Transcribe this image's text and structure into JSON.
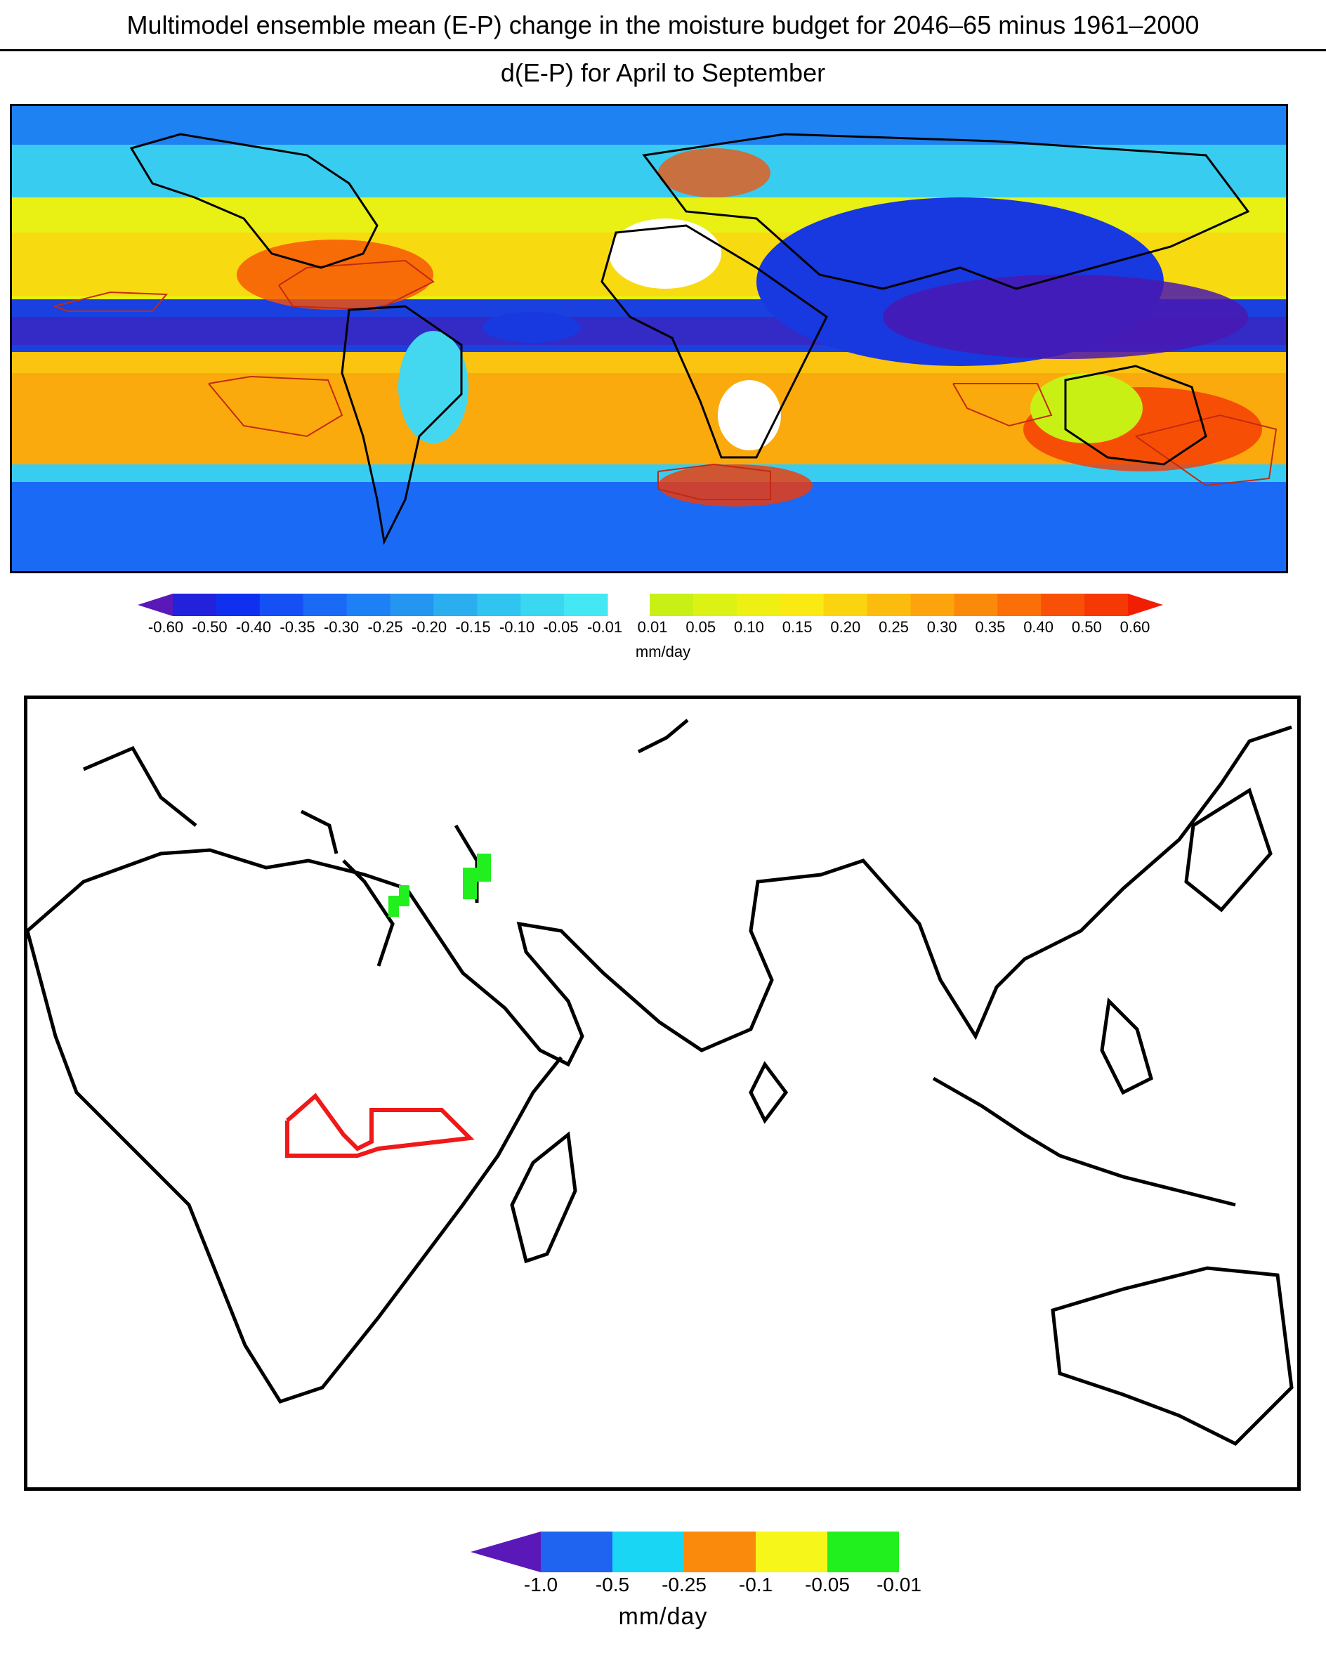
{
  "header": {
    "title": "Multimodel ensemble mean (E-P) change in the moisture budget for 2046–65 minus 1961–2000",
    "subtitle": "d(E-P) for April to September"
  },
  "top_map": {
    "colorbar": {
      "negative_colors": [
        "#5a18b8",
        "#2222dd",
        "#1030f0",
        "#1550f5",
        "#1a6af5",
        "#1e80f5",
        "#2496f2",
        "#2aaef0",
        "#30c4f0",
        "#3ad8f0",
        "#44e8f4"
      ],
      "positive_colors": [
        "#c8f014",
        "#dcf214",
        "#eef014",
        "#faea12",
        "#fbd410",
        "#fcbc0e",
        "#fda40c",
        "#fc8a0a",
        "#fb6e08",
        "#f85006",
        "#f53804",
        "#f21e02"
      ],
      "tick_labels": [
        "-0.60",
        "-0.50",
        "-0.40",
        "-0.35",
        "-0.30",
        "-0.25",
        "-0.20",
        "-0.15",
        "-0.10",
        "-0.05",
        "-0.01",
        "0.01",
        "0.05",
        "0.10",
        "0.15",
        "0.20",
        "0.25",
        "0.30",
        "0.35",
        "0.40",
        "0.50",
        "0.60"
      ],
      "units": "mm/day"
    }
  },
  "bottom_map": {
    "colorbar": {
      "colors": [
        "#5a18b8",
        "#1e64f0",
        "#1ad6f5",
        "#fa8a0c",
        "#f6f61a",
        "#22f01e"
      ],
      "tick_labels": [
        "-1.0",
        "-0.5",
        "-0.25",
        "-0.1",
        "-0.05",
        "-0.01"
      ],
      "units": "mm/day"
    },
    "highlight_color": "#f01818",
    "significant_color": "#22f01e"
  }
}
